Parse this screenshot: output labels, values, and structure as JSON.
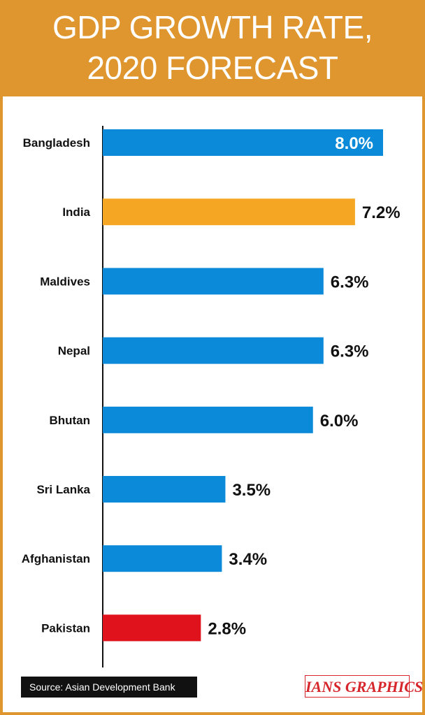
{
  "header": {
    "title_line1": "GDP GROWTH RATE,",
    "title_line2": "2020 FORECAST"
  },
  "footer": {
    "source": "Source: Asian Development Bank",
    "credit": "IANS GRAPHICS"
  },
  "colors": {
    "header": "#e0962e",
    "default_bar": "#0a8ad8",
    "highlight_bar": "#f5a623",
    "low_bar": "#e0121b"
  },
  "chart_data": {
    "type": "bar",
    "orientation": "horizontal",
    "title": "GDP GROWTH RATE, 2020 FORECAST",
    "categories": [
      "Bangladesh",
      "India",
      "Maldives",
      "Nepal",
      "Bhutan",
      "Sri Lanka",
      "Afghanistan",
      "Pakistan"
    ],
    "values": [
      8.0,
      7.2,
      6.3,
      6.3,
      6.0,
      3.5,
      3.4,
      2.8
    ],
    "labels": [
      "8.0%",
      "7.2%",
      "6.3%",
      "6.3%",
      "6.0%",
      "3.5%",
      "3.4%",
      "2.8%"
    ],
    "bar_colors": [
      "#0a8ad8",
      "#f5a623",
      "#0a8ad8",
      "#0a8ad8",
      "#0a8ad8",
      "#0a8ad8",
      "#0a8ad8",
      "#e0121b"
    ],
    "xlim": [
      0,
      8.0
    ],
    "grid": false,
    "legend": "none"
  }
}
